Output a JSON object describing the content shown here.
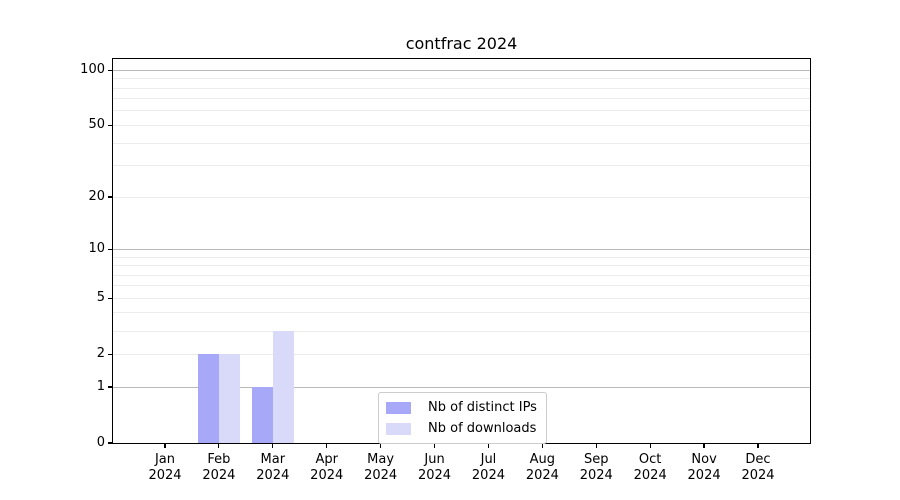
{
  "chart_data": {
    "type": "bar",
    "title": "contfrac 2024",
    "categories": [
      "Jan",
      "Feb",
      "Mar",
      "Apr",
      "May",
      "Jun",
      "Jul",
      "Aug",
      "Sep",
      "Oct",
      "Nov",
      "Dec"
    ],
    "x_tick_year": "2024",
    "series": [
      {
        "name": "Nb of distinct IPs",
        "color": "#a8a8f8",
        "values": [
          0,
          2,
          1,
          0,
          0,
          0,
          0,
          0,
          0,
          0,
          0,
          0
        ]
      },
      {
        "name": "Nb of downloads",
        "color": "#d9daf9",
        "values": [
          0,
          2,
          3,
          0,
          0,
          0,
          0,
          0,
          0,
          0,
          0,
          0
        ]
      }
    ],
    "y_axis": {
      "scale": "log10(1+y)",
      "tick_values": [
        0,
        1,
        2,
        5,
        10,
        20,
        50,
        100
      ],
      "range_max": 110,
      "major_gridlines": [
        1,
        10,
        100
      ],
      "minor_gridlines": [
        2,
        3,
        4,
        5,
        6,
        7,
        8,
        9,
        20,
        30,
        40,
        50,
        60,
        70,
        80,
        90
      ]
    },
    "legend": {
      "position": "lower center",
      "entries": [
        "Nb of distinct IPs",
        "Nb of downloads"
      ]
    },
    "colors": {
      "minor_grid": "#ececec",
      "major_grid": "#b9b9b9",
      "spine": "#000000",
      "background": "#ffffff"
    }
  }
}
